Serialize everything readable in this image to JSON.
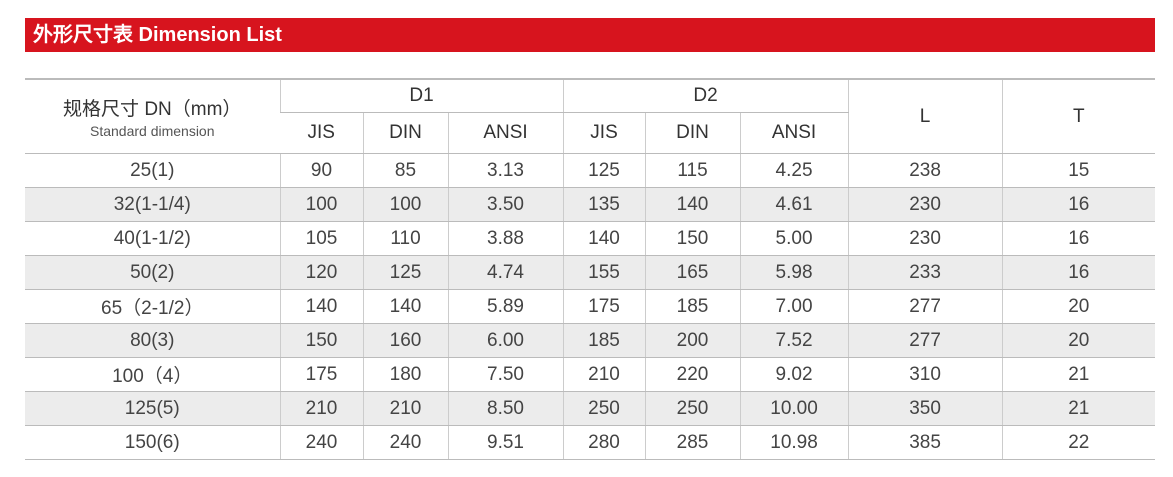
{
  "header": {
    "title": "外形尺寸表  Dimension List"
  },
  "table": {
    "header": {
      "dn": "规格尺寸 DN（mm）",
      "dn_sub": "Standard dimension",
      "groups": [
        "D1",
        "D2",
        "L",
        "T"
      ],
      "sub": [
        "JIS",
        "DIN",
        "ANSI",
        "JIS",
        "DIN",
        "ANSI"
      ]
    },
    "rows": [
      [
        "25(1)",
        "90",
        "85",
        "3.13",
        "125",
        "115",
        "4.25",
        "238",
        "15"
      ],
      [
        "32(1-1/4)",
        "100",
        "100",
        "3.50",
        "135",
        "140",
        "4.61",
        "230",
        "16"
      ],
      [
        "40(1-1/2)",
        "105",
        "110",
        "3.88",
        "140",
        "150",
        "5.00",
        "230",
        "16"
      ],
      [
        "50(2)",
        "120",
        "125",
        "4.74",
        "155",
        "165",
        "5.98",
        "233",
        "16"
      ],
      [
        "65（2-1/2）",
        "140",
        "140",
        "5.89",
        "175",
        "185",
        "7.00",
        "277",
        "20"
      ],
      [
        "80(3)",
        "150",
        "160",
        "6.00",
        "185",
        "200",
        "7.52",
        "277",
        "20"
      ],
      [
        "100（4）",
        "175",
        "180",
        "7.50",
        "210",
        "220",
        "9.02",
        "310",
        "21"
      ],
      [
        "125(5)",
        "210",
        "210",
        "8.50",
        "250",
        "250",
        "10.00",
        "350",
        "21"
      ],
      [
        "150(6)",
        "240",
        "240",
        "9.51",
        "280",
        "285",
        "10.98",
        "385",
        "22"
      ]
    ]
  }
}
